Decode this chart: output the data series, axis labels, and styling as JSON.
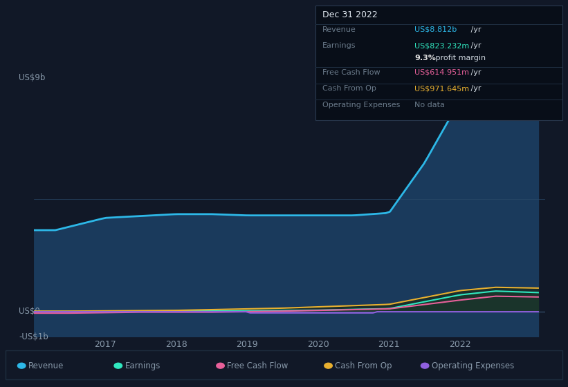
{
  "background_color": "#111827",
  "plot_bg_color": "#111827",
  "ylabel_top": "US$9b",
  "ylabel_zero": "US$0",
  "ylabel_neg": "-US$1b",
  "x_ticks": [
    "2017",
    "2018",
    "2019",
    "2020",
    "2021",
    "2022"
  ],
  "legend": [
    {
      "label": "Revenue",
      "color": "#2db8e8"
    },
    {
      "label": "Earnings",
      "color": "#30e8c0"
    },
    {
      "label": "Free Cash Flow",
      "color": "#e8609a"
    },
    {
      "label": "Cash From Op",
      "color": "#e8b030"
    },
    {
      "label": "Operating Expenses",
      "color": "#9060e0"
    }
  ],
  "tooltip": {
    "date": "Dec 31 2022",
    "revenue_label": "Revenue",
    "revenue_value": "US$8.812b",
    "revenue_suffix": " /yr",
    "earnings_label": "Earnings",
    "earnings_value": "US$823.232m",
    "earnings_suffix": " /yr",
    "profit_pct": "9.3%",
    "profit_label": " profit margin",
    "fcf_label": "Free Cash Flow",
    "fcf_value": "US$614.951m",
    "fcf_suffix": " /yr",
    "cop_label": "Cash From Op",
    "cop_value": "US$971.645m",
    "cop_suffix": " /yr",
    "opex_label": "Operating Expenses",
    "opex_value": "No data"
  },
  "revenue_color": "#2db8e8",
  "earnings_color": "#30e8c0",
  "fcf_color": "#e8609a",
  "cashfromop_color": "#e8b030",
  "opex_color": "#9060e0",
  "text_color": "#8899aa",
  "highlight_color": "#1a2a3a",
  "fill_color": "#1a3a5c",
  "ylim": [
    -1.0,
    9.5
  ],
  "xlim": [
    2016.0,
    2023.2
  ]
}
